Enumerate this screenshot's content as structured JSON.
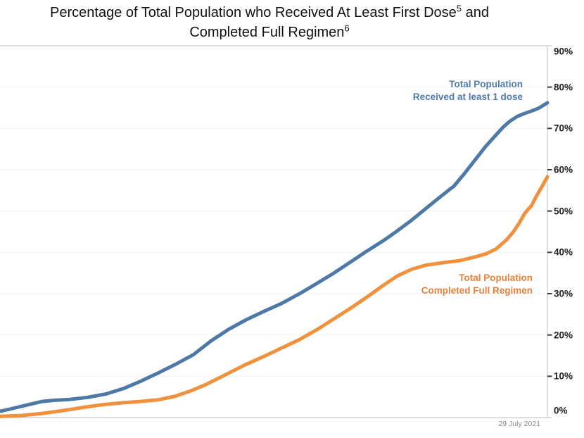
{
  "header": {
    "line1_main": "Percentage of Total Population who Received At Least First Dose",
    "line1_sup": "5",
    "line1_tail": " and",
    "line2_main": "Completed Full Regimen",
    "line2_sup": "6"
  },
  "footer": {
    "date": "29 July 2021"
  },
  "colors": {
    "first_dose_line": "#4e79a7",
    "first_dose_label": "#4f7ab0",
    "full_regimen_line": "#f0923d",
    "full_regimen_label": "#e8823a",
    "gridline": "#f1f1f1",
    "plot_border": "#d4d4d4",
    "axis_line": "#c9c9c9",
    "tick_mark": "#3a3a3a",
    "axis_label": "#1f1f1f",
    "date_text": "#8c8c8c"
  },
  "chart_data": {
    "type": "line",
    "title": "Percentage of Total Population who Received At Least First Dose⁵ and Completed Full Regimen⁶",
    "x_axis": {
      "label": "",
      "tick_labels": [],
      "note": "unlabeled time axis; rightmost point corresponds to 29 July 2021",
      "range": [
        0,
        1
      ]
    },
    "y_axis": {
      "position": "right",
      "range": [
        0,
        90
      ],
      "unit": "%",
      "ticks": [
        90,
        80,
        70,
        60,
        50,
        40,
        30,
        20,
        10,
        0
      ],
      "tick_labels": [
        "90%",
        "80%",
        "70%",
        "60%",
        "50%",
        "40%",
        "30%",
        "20%",
        "10%",
        "0%"
      ]
    },
    "grid": "horizontal light-gray lines at every 10%",
    "legend": "inline series data labels",
    "series": [
      {
        "name": "Total Population Received at least 1 dose",
        "label_lines": [
          "Total Population",
          "Received at least 1 dose"
        ],
        "color": "#4e79a7",
        "label_color": "#4f7ab0",
        "final_value_pct": 76.2,
        "points": [
          [
            0.0,
            1.5
          ],
          [
            0.026,
            2.3
          ],
          [
            0.051,
            3.1
          ],
          [
            0.077,
            3.9
          ],
          [
            0.1,
            4.2
          ],
          [
            0.128,
            4.4
          ],
          [
            0.16,
            4.9
          ],
          [
            0.193,
            5.7
          ],
          [
            0.225,
            7.0
          ],
          [
            0.257,
            8.8
          ],
          [
            0.289,
            10.8
          ],
          [
            0.321,
            12.9
          ],
          [
            0.353,
            15.2
          ],
          [
            0.386,
            18.6
          ],
          [
            0.418,
            21.4
          ],
          [
            0.45,
            23.7
          ],
          [
            0.482,
            25.7
          ],
          [
            0.514,
            27.6
          ],
          [
            0.546,
            29.9
          ],
          [
            0.578,
            32.4
          ],
          [
            0.61,
            35.0
          ],
          [
            0.642,
            37.8
          ],
          [
            0.668,
            40.1
          ],
          [
            0.7,
            42.8
          ],
          [
            0.726,
            45.2
          ],
          [
            0.752,
            47.8
          ],
          [
            0.778,
            50.6
          ],
          [
            0.804,
            53.4
          ],
          [
            0.823,
            55.4
          ],
          [
            0.829,
            56.0
          ],
          [
            0.848,
            59.0
          ],
          [
            0.868,
            62.4
          ],
          [
            0.887,
            65.6
          ],
          [
            0.906,
            68.4
          ],
          [
            0.919,
            70.3
          ],
          [
            0.932,
            71.8
          ],
          [
            0.945,
            72.9
          ],
          [
            0.958,
            73.6
          ],
          [
            0.971,
            74.2
          ],
          [
            0.984,
            74.9
          ],
          [
            1.0,
            76.2
          ]
        ]
      },
      {
        "name": "Total Population Completed Full Regimen",
        "label_lines": [
          "Total Population",
          "Completed Full Regimen"
        ],
        "color": "#f0923d",
        "label_color": "#e8823a",
        "final_value_pct": 58.3,
        "points": [
          [
            0.0,
            0.3
          ],
          [
            0.039,
            0.5
          ],
          [
            0.077,
            1.0
          ],
          [
            0.116,
            1.7
          ],
          [
            0.154,
            2.5
          ],
          [
            0.193,
            3.2
          ],
          [
            0.225,
            3.6
          ],
          [
            0.257,
            3.9
          ],
          [
            0.289,
            4.3
          ],
          [
            0.321,
            5.2
          ],
          [
            0.347,
            6.4
          ],
          [
            0.373,
            7.8
          ],
          [
            0.399,
            9.5
          ],
          [
            0.424,
            11.2
          ],
          [
            0.45,
            12.9
          ],
          [
            0.482,
            14.8
          ],
          [
            0.514,
            16.8
          ],
          [
            0.546,
            18.8
          ],
          [
            0.578,
            21.2
          ],
          [
            0.61,
            23.9
          ],
          [
            0.642,
            26.6
          ],
          [
            0.675,
            29.6
          ],
          [
            0.7,
            32.0
          ],
          [
            0.726,
            34.3
          ],
          [
            0.752,
            35.9
          ],
          [
            0.778,
            36.9
          ],
          [
            0.81,
            37.5
          ],
          [
            0.84,
            38.0
          ],
          [
            0.868,
            38.9
          ],
          [
            0.887,
            39.6
          ],
          [
            0.906,
            40.8
          ],
          [
            0.925,
            43.0
          ],
          [
            0.938,
            45.0
          ],
          [
            0.949,
            47.2
          ],
          [
            0.958,
            49.3
          ],
          [
            0.964,
            50.3
          ],
          [
            0.971,
            51.3
          ],
          [
            0.98,
            53.6
          ],
          [
            0.99,
            55.9
          ],
          [
            1.0,
            58.3
          ]
        ]
      }
    ]
  }
}
